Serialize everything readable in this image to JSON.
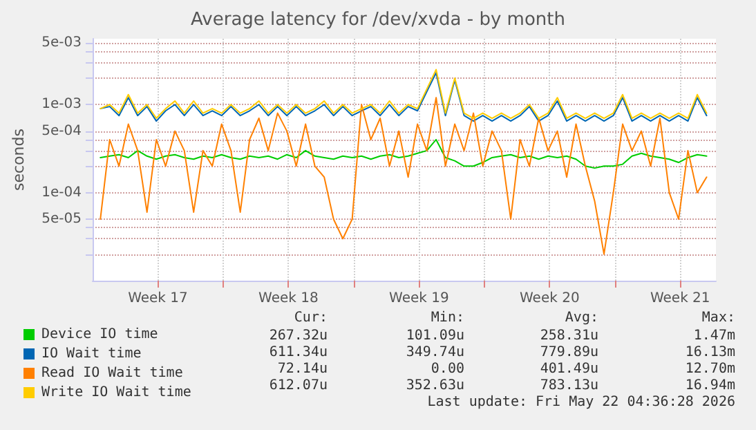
{
  "chart_data": {
    "type": "line",
    "title": "Average latency for /dev/xvda - by month",
    "ylabel": "seconds",
    "log": "y",
    "grid": true,
    "legend": "bottom left",
    "marker": "none",
    "line_style": "solid",
    "ylim": [
      1e-05,
      0.0056
    ],
    "yticks": [
      {
        "value": 0.005,
        "label": "5e-03"
      },
      {
        "value": 0.004,
        "label": null
      },
      {
        "value": 0.003,
        "label": null
      },
      {
        "value": 0.002,
        "label": null
      },
      {
        "value": 0.001,
        "label": "1e-03"
      },
      {
        "value": 0.0005,
        "label": "5e-04"
      },
      {
        "value": 0.0004,
        "label": null
      },
      {
        "value": 0.0003,
        "label": null
      },
      {
        "value": 0.0002,
        "label": null
      },
      {
        "value": 0.0001,
        "label": "1e-04"
      },
      {
        "value": 5e-05,
        "label": "5e-05"
      },
      {
        "value": 4e-05,
        "label": null
      },
      {
        "value": 3e-05,
        "label": null
      },
      {
        "value": 2e-05,
        "label": null
      }
    ],
    "xlim": [
      "2026-04-19T02:00",
      "2026-05-22T12:00"
    ],
    "xticks": [
      {
        "value": "2026-04-22T14:00",
        "label": "Week 17"
      },
      {
        "value": "2026-04-26T02:00",
        "label": null
      },
      {
        "value": "2026-04-29T14:00",
        "label": "Week 18"
      },
      {
        "value": "2026-05-03T02:00",
        "label": null
      },
      {
        "value": "2026-05-06T14:00",
        "label": "Week 19"
      },
      {
        "value": "2026-05-10T02:00",
        "label": null
      },
      {
        "value": "2026-05-13T14:00",
        "label": "Week 20"
      },
      {
        "value": "2026-05-17T02:00",
        "label": null
      },
      {
        "value": "2026-05-20T14:00",
        "label": "Week 21"
      }
    ],
    "x": [
      "2026-04-19T12:00",
      "2026-04-20T00:00",
      "2026-04-20T12:00",
      "2026-04-21T00:00",
      "2026-04-21T12:00",
      "2026-04-22T00:00",
      "2026-04-22T12:00",
      "2026-04-23T00:00",
      "2026-04-23T12:00",
      "2026-04-24T00:00",
      "2026-04-24T12:00",
      "2026-04-25T00:00",
      "2026-04-25T12:00",
      "2026-04-26T00:00",
      "2026-04-26T12:00",
      "2026-04-27T00:00",
      "2026-04-27T12:00",
      "2026-04-28T00:00",
      "2026-04-28T12:00",
      "2026-04-29T00:00",
      "2026-04-29T12:00",
      "2026-04-30T00:00",
      "2026-04-30T12:00",
      "2026-05-01T00:00",
      "2026-05-01T12:00",
      "2026-05-02T00:00",
      "2026-05-02T12:00",
      "2026-05-03T00:00",
      "2026-05-03T12:00",
      "2026-05-04T00:00",
      "2026-05-04T12:00",
      "2026-05-05T00:00",
      "2026-05-05T12:00",
      "2026-05-06T00:00",
      "2026-05-06T12:00",
      "2026-05-07T00:00",
      "2026-05-07T12:00",
      "2026-05-08T00:00",
      "2026-05-08T12:00",
      "2026-05-09T00:00",
      "2026-05-09T12:00",
      "2026-05-10T00:00",
      "2026-05-10T12:00",
      "2026-05-11T00:00",
      "2026-05-11T12:00",
      "2026-05-12T00:00",
      "2026-05-12T12:00",
      "2026-05-13T00:00",
      "2026-05-13T12:00",
      "2026-05-14T00:00",
      "2026-05-14T12:00",
      "2026-05-15T00:00",
      "2026-05-15T12:00",
      "2026-05-16T00:00",
      "2026-05-16T12:00",
      "2026-05-17T00:00",
      "2026-05-17T12:00",
      "2026-05-18T00:00",
      "2026-05-18T12:00",
      "2026-05-19T00:00",
      "2026-05-19T12:00",
      "2026-05-20T00:00",
      "2026-05-20T12:00",
      "2026-05-21T00:00",
      "2026-05-21T12:00",
      "2026-05-22T00:00"
    ],
    "series": [
      {
        "name": "Device IO time",
        "color": "#00cc00",
        "values": [
          0.00025,
          0.00026,
          0.00027,
          0.00025,
          0.0003,
          0.00026,
          0.00024,
          0.00026,
          0.00027,
          0.00025,
          0.00024,
          0.00026,
          0.00025,
          0.00027,
          0.00025,
          0.00024,
          0.00026,
          0.00025,
          0.00026,
          0.00024,
          0.00027,
          0.00025,
          0.0003,
          0.00026,
          0.00025,
          0.00024,
          0.00026,
          0.00025,
          0.00026,
          0.00024,
          0.00026,
          0.00027,
          0.00025,
          0.00026,
          0.00028,
          0.0003,
          0.0004,
          0.00025,
          0.00023,
          0.0002,
          0.0002,
          0.00022,
          0.00025,
          0.00026,
          0.00027,
          0.00025,
          0.00026,
          0.00024,
          0.00026,
          0.00025,
          0.00026,
          0.00024,
          0.0002,
          0.00019,
          0.0002,
          0.0002,
          0.00021,
          0.00026,
          0.00028,
          0.00026,
          0.00025,
          0.00024,
          0.00022,
          0.00025,
          0.00027,
          0.00026
        ]
      },
      {
        "name": "IO Wait time",
        "color": "#0066b3",
        "values": [
          0.0009,
          0.00095,
          0.00075,
          0.0012,
          0.00075,
          0.00095,
          0.00065,
          0.00085,
          0.001,
          0.00075,
          0.001,
          0.00075,
          0.00085,
          0.00075,
          0.00095,
          0.00075,
          0.00085,
          0.001,
          0.00075,
          0.00095,
          0.00075,
          0.00095,
          0.00075,
          0.00085,
          0.001,
          0.00075,
          0.00095,
          0.00075,
          0.00085,
          0.00095,
          0.00075,
          0.001,
          0.00075,
          0.00095,
          0.00085,
          0.0014,
          0.0023,
          0.00075,
          0.0019,
          0.00075,
          0.00065,
          0.00075,
          0.00065,
          0.00075,
          0.00065,
          0.00075,
          0.00095,
          0.00065,
          0.00075,
          0.0011,
          0.00065,
          0.00075,
          0.00065,
          0.00075,
          0.00065,
          0.00075,
          0.0012,
          0.00065,
          0.00075,
          0.00065,
          0.00075,
          0.00065,
          0.00075,
          0.00065,
          0.0012,
          0.00075
        ]
      },
      {
        "name": "Read IO Wait time",
        "color": "#ff8000",
        "values": [
          5e-05,
          0.0004,
          0.0002,
          0.0006,
          0.0003,
          6e-05,
          0.0004,
          0.0002,
          0.0005,
          0.0003,
          6e-05,
          0.0003,
          0.0002,
          0.0006,
          0.0003,
          6e-05,
          0.0004,
          0.0007,
          0.0003,
          0.0008,
          0.0005,
          0.0002,
          0.0006,
          0.0002,
          0.00015,
          5e-05,
          3e-05,
          5e-05,
          0.001,
          0.0004,
          0.0007,
          0.0002,
          0.0005,
          0.00015,
          0.0006,
          0.0003,
          0.0012,
          0.0002,
          0.0006,
          0.0003,
          0.0008,
          0.0002,
          0.0005,
          0.0003,
          5e-05,
          0.0004,
          0.0002,
          0.0007,
          0.0003,
          0.0005,
          0.00015,
          0.0006,
          0.0002,
          8e-05,
          2e-05,
          0.0001,
          0.0006,
          0.0003,
          0.0005,
          0.0002,
          0.0007,
          0.0001,
          5e-05,
          0.0003,
          0.0001,
          0.00015
        ]
      },
      {
        "name": "Write IO Wait time",
        "color": "#ffcc00",
        "values": [
          0.0009,
          0.001,
          0.0008,
          0.0013,
          0.0008,
          0.001,
          0.0007,
          0.0009,
          0.0011,
          0.0008,
          0.0011,
          0.0008,
          0.0009,
          0.0008,
          0.001,
          0.0008,
          0.0009,
          0.0011,
          0.0008,
          0.001,
          0.0008,
          0.001,
          0.0008,
          0.0009,
          0.0011,
          0.0008,
          0.001,
          0.0008,
          0.0009,
          0.001,
          0.0008,
          0.0011,
          0.0008,
          0.001,
          0.0009,
          0.0015,
          0.0025,
          0.0008,
          0.002,
          0.0008,
          0.0007,
          0.0008,
          0.0007,
          0.0008,
          0.0007,
          0.0008,
          0.001,
          0.0007,
          0.0008,
          0.0012,
          0.0007,
          0.0008,
          0.0007,
          0.0008,
          0.0007,
          0.0008,
          0.0013,
          0.0007,
          0.0008,
          0.0007,
          0.0008,
          0.0007,
          0.0008,
          0.0007,
          0.0013,
          0.0008
        ]
      }
    ],
    "annotations": [
      "Cur:",
      "Min:",
      "Avg:",
      "Max:",
      "267.32u",
      "101.09u",
      "258.31u",
      "1.47m",
      "611.34u",
      "349.74u",
      "779.89u",
      "16.13m",
      "72.14u",
      "0.00",
      "401.49u",
      "12.70m",
      "612.07u",
      "352.63u",
      "783.13u",
      "16.94m",
      "Last update: Fri May 22 04:36:28 2026"
    ]
  }
}
